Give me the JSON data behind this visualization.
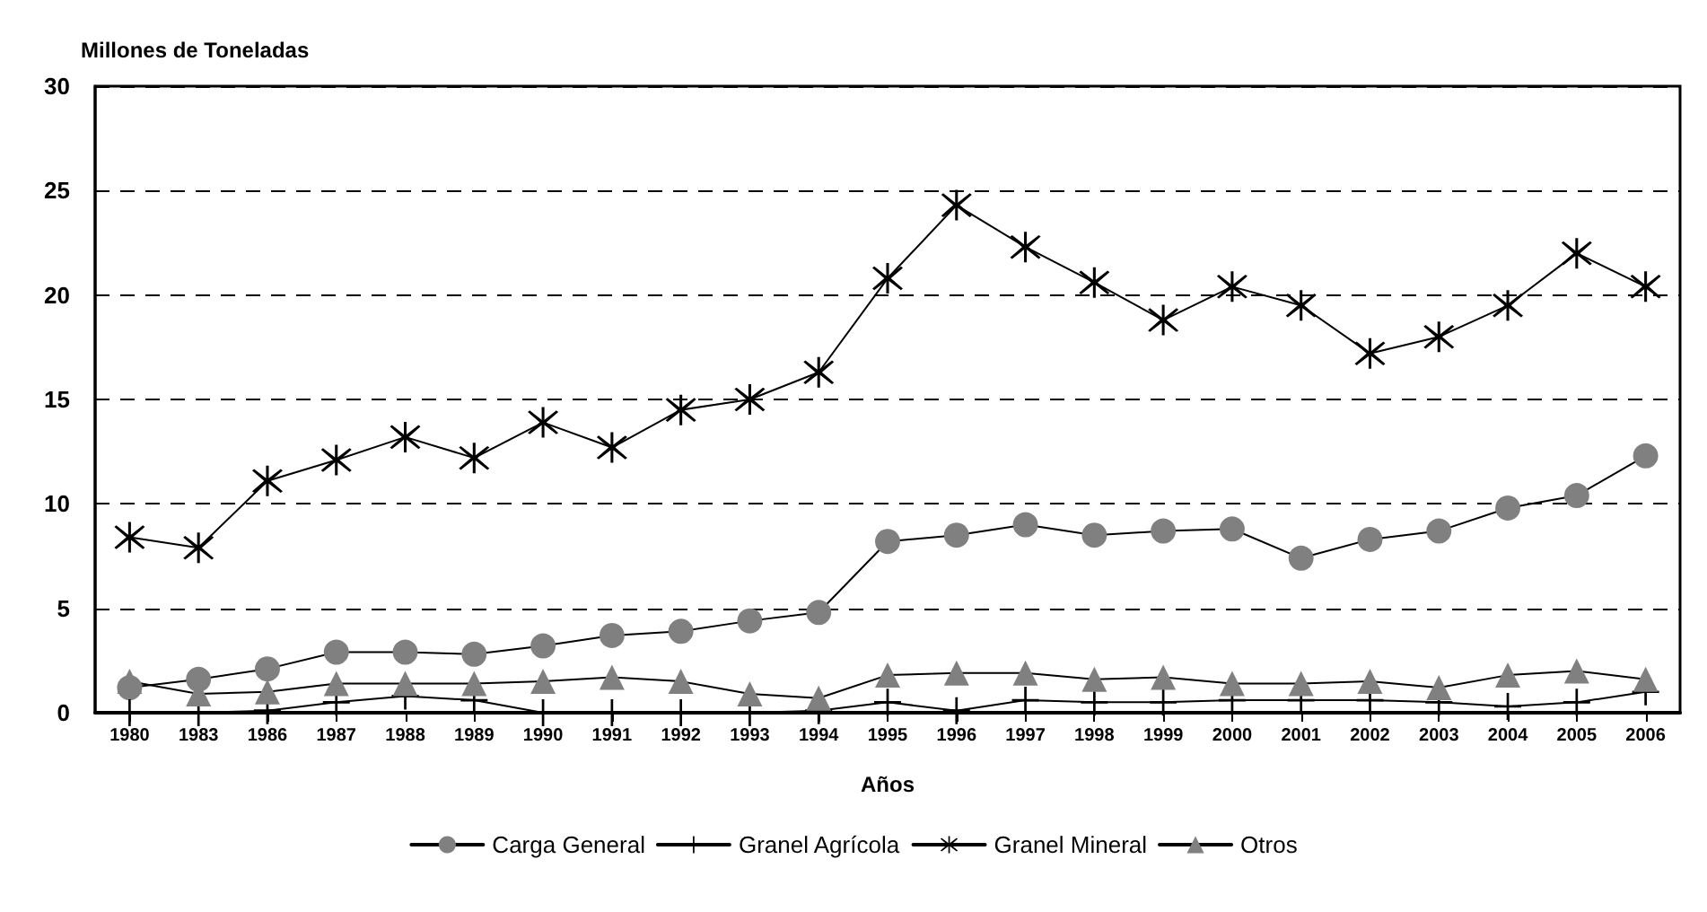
{
  "chart_data": {
    "type": "line",
    "ylabel": "Millones de Toneladas",
    "xlabel": "Años",
    "categories": [
      "1980",
      "1983",
      "1986",
      "1987",
      "1988",
      "1989",
      "1990",
      "1991",
      "1992",
      "1993",
      "1994",
      "1995",
      "1996",
      "1997",
      "1998",
      "1999",
      "2000",
      "2001",
      "2002",
      "2003",
      "2004",
      "2005",
      "2006"
    ],
    "series": [
      {
        "name": "Carga General",
        "color": "#808080",
        "marker": "circle",
        "values": [
          1.2,
          1.6,
          2.1,
          2.9,
          2.9,
          2.8,
          3.2,
          3.7,
          3.9,
          4.4,
          4.8,
          8.2,
          8.5,
          9.0,
          8.5,
          8.7,
          8.8,
          7.4,
          8.3,
          8.7,
          9.8,
          10.4,
          12.3
        ]
      },
      {
        "name": "Granel Agrícola",
        "color": "#000000",
        "marker": "cross",
        "values": [
          0.0,
          0.0,
          0.1,
          0.5,
          0.8,
          0.6,
          0.0,
          0.0,
          0.0,
          0.0,
          0.1,
          0.5,
          0.1,
          0.6,
          0.5,
          0.5,
          0.6,
          0.6,
          0.6,
          0.5,
          0.3,
          0.5,
          1.0
        ]
      },
      {
        "name": "Granel Mineral",
        "color": "#000000",
        "marker": "star",
        "values": [
          8.4,
          7.9,
          11.1,
          12.1,
          13.2,
          12.2,
          13.9,
          12.7,
          14.5,
          15.0,
          16.3,
          20.8,
          24.3,
          22.3,
          20.6,
          18.8,
          20.4,
          19.5,
          17.2,
          18.0,
          19.5,
          22.0,
          20.4
        ]
      },
      {
        "name": "Otros",
        "color": "#808080",
        "marker": "triangle",
        "values": [
          1.5,
          0.9,
          1.0,
          1.4,
          1.4,
          1.4,
          1.5,
          1.7,
          1.5,
          0.9,
          0.7,
          1.8,
          1.9,
          1.9,
          1.6,
          1.7,
          1.4,
          1.4,
          1.5,
          1.2,
          1.8,
          2.0,
          1.6
        ]
      }
    ],
    "ylim": [
      0,
      30
    ],
    "yticks": [
      0,
      5,
      10,
      15,
      20,
      25,
      30
    ],
    "grid": "y",
    "legend": "bottom",
    "line_style": "solid"
  }
}
